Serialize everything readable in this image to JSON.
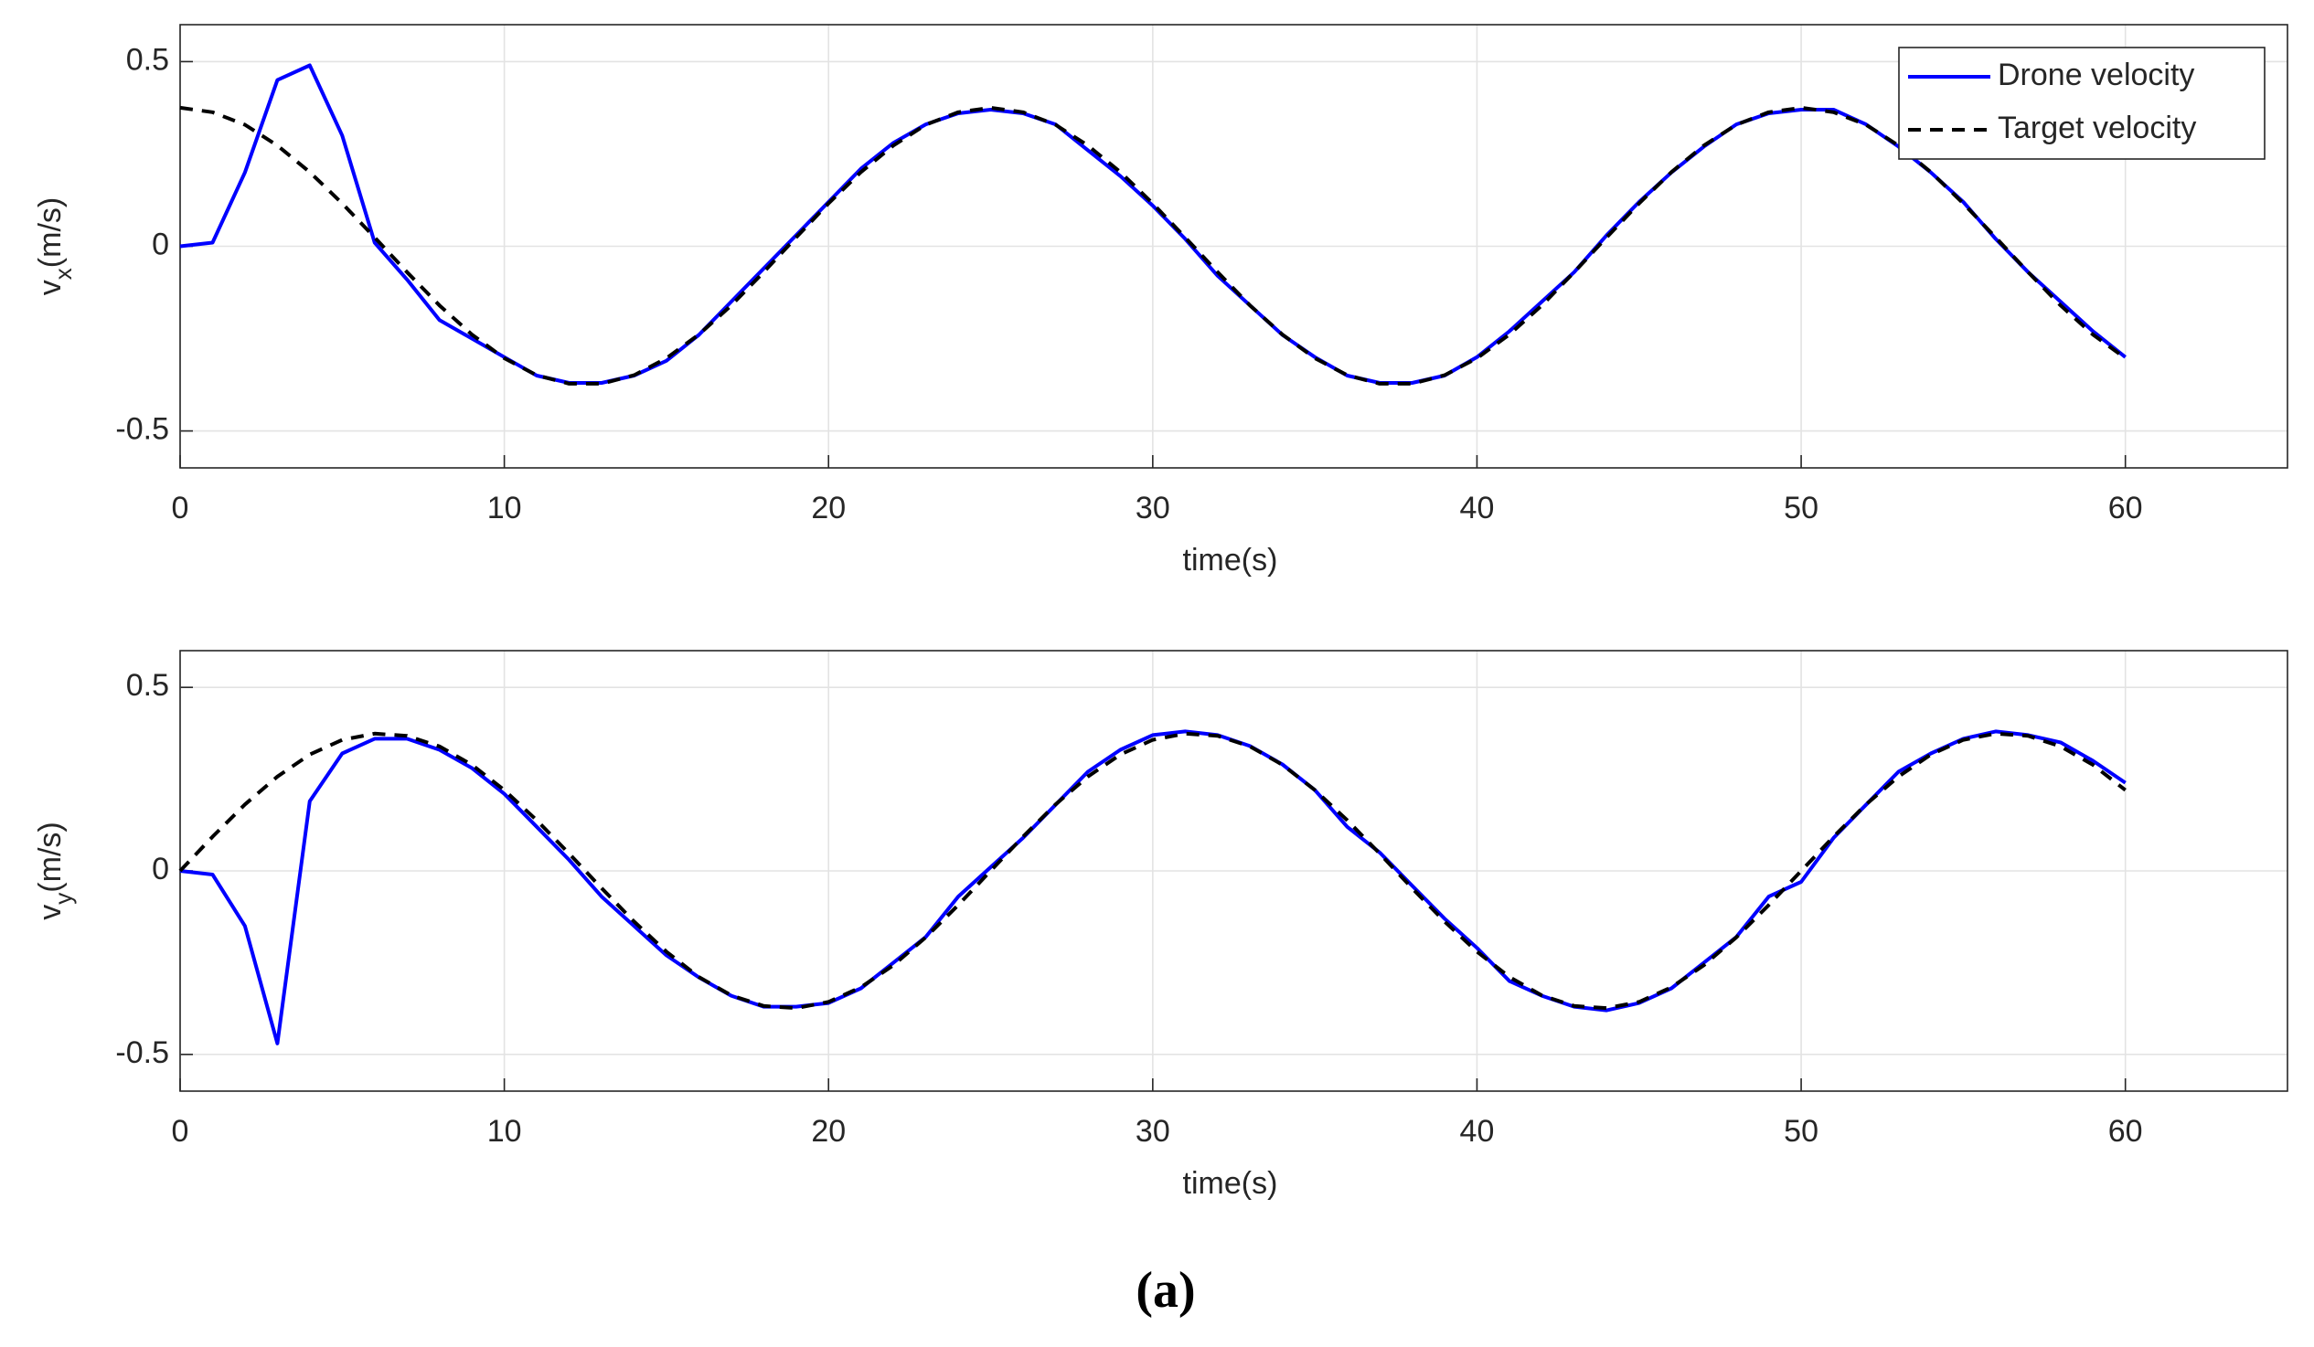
{
  "chart_data": [
    {
      "type": "line",
      "xlabel": "time(s)",
      "ylabel_symbol": "v",
      "ylabel_subscript": "x",
      "ylabel_unit": "(m/s)",
      "x": [
        0,
        1,
        2,
        3,
        4,
        5,
        6,
        7,
        8,
        9,
        10,
        11,
        12,
        13,
        14,
        15,
        16,
        17,
        18,
        19,
        20,
        21,
        22,
        23,
        24,
        25,
        26,
        27,
        28,
        29,
        30,
        31,
        32,
        33,
        34,
        35,
        36,
        37,
        38,
        39,
        40,
        41,
        42,
        43,
        44,
        45,
        46,
        47,
        48,
        49,
        50,
        51,
        52,
        53,
        54,
        55,
        56,
        57,
        58,
        59,
        60
      ],
      "series": [
        {
          "name": "Drone velocity",
          "color": "#0000ff",
          "linestyle": "solid",
          "values": [
            0,
            0.01,
            0.2,
            0.45,
            0.49,
            0.3,
            0.01,
            -0.09,
            -0.2,
            -0.25,
            -0.3,
            -0.35,
            -0.37,
            -0.37,
            -0.35,
            -0.31,
            -0.24,
            -0.15,
            -0.06,
            0.03,
            0.12,
            0.21,
            0.28,
            0.33,
            0.36,
            0.37,
            0.36,
            0.33,
            0.26,
            0.19,
            0.11,
            0.02,
            -0.08,
            -0.16,
            -0.24,
            -0.3,
            -0.35,
            -0.37,
            -0.37,
            -0.35,
            -0.3,
            -0.23,
            -0.15,
            -0.07,
            0.03,
            0.12,
            0.2,
            0.27,
            0.33,
            0.36,
            0.37,
            0.37,
            0.33,
            0.27,
            0.2,
            0.12,
            0.02,
            -0.07,
            -0.15,
            -0.23,
            -0.3
          ]
        },
        {
          "name": "Target velocity",
          "color": "#000000",
          "linestyle": "dashed",
          "values": [
            0.375,
            0.363,
            0.329,
            0.273,
            0.201,
            0.116,
            0.024,
            -0.07,
            -0.16,
            -0.239,
            -0.303,
            -0.349,
            -0.372,
            -0.372,
            -0.349,
            -0.303,
            -0.239,
            -0.16,
            -0.07,
            0.024,
            0.116,
            0.201,
            0.273,
            0.329,
            0.363,
            0.375,
            0.363,
            0.329,
            0.273,
            0.201,
            0.116,
            0.024,
            -0.07,
            -0.16,
            -0.239,
            -0.303,
            -0.349,
            -0.372,
            -0.372,
            -0.349,
            -0.303,
            -0.239,
            -0.16,
            -0.07,
            0.024,
            0.116,
            0.201,
            0.273,
            0.329,
            0.363,
            0.375,
            0.363,
            0.329,
            0.273,
            0.201,
            0.116,
            0.024,
            -0.07,
            -0.16,
            -0.239,
            -0.303
          ]
        }
      ],
      "xlim": [
        0,
        65
      ],
      "xticks": [
        0,
        10,
        20,
        30,
        40,
        50,
        60
      ],
      "ylim": [
        -0.6,
        0.6
      ],
      "yticks": [
        -0.5,
        0,
        0.5
      ],
      "grid": true,
      "legend": "upper right"
    },
    {
      "type": "line",
      "xlabel": "time(s)",
      "ylabel_symbol": "v",
      "ylabel_subscript": "y",
      "ylabel_unit": "(m/s)",
      "x": [
        0,
        1,
        2,
        3,
        4,
        5,
        6,
        7,
        8,
        9,
        10,
        11,
        12,
        13,
        14,
        15,
        16,
        17,
        18,
        19,
        20,
        21,
        22,
        23,
        24,
        25,
        26,
        27,
        28,
        29,
        30,
        31,
        32,
        33,
        34,
        35,
        36,
        37,
        38,
        39,
        40,
        41,
        42,
        43,
        44,
        45,
        46,
        47,
        48,
        49,
        50,
        51,
        52,
        53,
        54,
        55,
        56,
        57,
        58,
        59,
        60
      ],
      "series": [
        {
          "color": "#0000ff",
          "linestyle": "solid",
          "values": [
            0,
            -0.01,
            -0.15,
            -0.47,
            0.19,
            0.32,
            0.36,
            0.36,
            0.33,
            0.28,
            0.21,
            0.12,
            0.03,
            -0.07,
            -0.15,
            -0.23,
            -0.29,
            -0.34,
            -0.37,
            -0.37,
            -0.36,
            -0.32,
            -0.25,
            -0.18,
            -0.07,
            0.01,
            0.09,
            0.18,
            0.27,
            0.33,
            0.37,
            0.38,
            0.37,
            0.34,
            0.29,
            0.22,
            0.12,
            0.05,
            -0.04,
            -0.13,
            -0.21,
            -0.3,
            -0.34,
            -0.37,
            -0.38,
            -0.36,
            -0.32,
            -0.25,
            -0.18,
            -0.07,
            -0.03,
            0.09,
            0.18,
            0.27,
            0.32,
            0.36,
            0.38,
            0.37,
            0.35,
            0.3,
            0.24
          ]
        },
        {
          "color": "#000000",
          "linestyle": "dashed",
          "values": [
            0,
            0.093,
            0.181,
            0.257,
            0.317,
            0.357,
            0.374,
            0.368,
            0.339,
            0.289,
            0.22,
            0.138,
            0.047,
            -0.047,
            -0.138,
            -0.22,
            -0.289,
            -0.339,
            -0.368,
            -0.374,
            -0.357,
            -0.317,
            -0.257,
            -0.181,
            -0.093,
            0,
            0.093,
            0.181,
            0.257,
            0.317,
            0.357,
            0.374,
            0.368,
            0.339,
            0.289,
            0.22,
            0.138,
            0.047,
            -0.047,
            -0.138,
            -0.22,
            -0.289,
            -0.339,
            -0.368,
            -0.374,
            -0.357,
            -0.317,
            -0.257,
            -0.181,
            -0.093,
            0,
            0.093,
            0.181,
            0.257,
            0.317,
            0.357,
            0.374,
            0.368,
            0.339,
            0.289,
            0.22
          ]
        }
      ],
      "xlim": [
        0,
        65
      ],
      "xticks": [
        0,
        10,
        20,
        30,
        40,
        50,
        60
      ],
      "ylim": [
        -0.6,
        0.6
      ],
      "yticks": [
        -0.5,
        0,
        0.5
      ],
      "grid": true
    }
  ],
  "caption": "(a)"
}
